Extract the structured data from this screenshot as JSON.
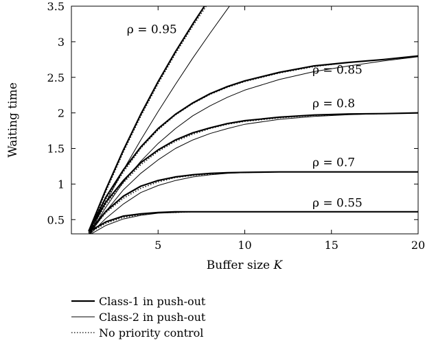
{
  "chart_data": {
    "type": "line",
    "xlabel": "Buffer size",
    "xlabel_var": "K",
    "ylabel": "Waiting time",
    "xlim": [
      0,
      20
    ],
    "ylim": [
      0.3,
      3.5
    ],
    "grid": false,
    "legend_placement": "bottom-left, below plot",
    "xticks": [
      {
        "value": 5,
        "label": "5"
      },
      {
        "value": 10,
        "label": "10"
      },
      {
        "value": 15,
        "label": "15"
      },
      {
        "value": 20,
        "label": "20"
      }
    ],
    "yticks": [
      {
        "value": 0.5,
        "label": "0.5"
      },
      {
        "value": 1,
        "label": "1"
      },
      {
        "value": 1.5,
        "label": "1.5"
      },
      {
        "value": 2,
        "label": "2"
      },
      {
        "value": 2.5,
        "label": "2.5"
      },
      {
        "value": 3,
        "label": "3"
      },
      {
        "value": 3.5,
        "label": "3.5"
      }
    ],
    "x": [
      1,
      2,
      3,
      4,
      5,
      6,
      7,
      8,
      9,
      10,
      12,
      14,
      16,
      18,
      20
    ],
    "legend": [
      {
        "label": "Class-1 in push-out",
        "style": "thick"
      },
      {
        "label": "Class-2 in push-out",
        "style": "thin"
      },
      {
        "label": "No priority control",
        "style": "dotted"
      }
    ],
    "groups": [
      {
        "label": "ρ = 0.55",
        "label_at": [
          13.9,
          0.68
        ],
        "series": [
          {
            "style": "thick",
            "values": [
              0.33,
              0.47,
              0.55,
              0.58,
              0.6,
              0.61,
              0.61,
              0.61,
              0.61,
              0.61,
              0.61,
              0.61,
              0.61,
              0.61,
              0.61
            ]
          },
          {
            "style": "thin",
            "values": [
              0.28,
              0.42,
              0.51,
              0.56,
              0.59,
              0.6,
              0.61,
              0.61,
              0.61,
              0.61,
              0.61,
              0.61,
              0.61,
              0.61,
              0.61
            ]
          },
          {
            "style": "dotted",
            "values": [
              0.31,
              0.45,
              0.53,
              0.57,
              0.6,
              0.6,
              0.61,
              0.61,
              0.61,
              0.61,
              0.61,
              0.61,
              0.61,
              0.61,
              0.61
            ]
          }
        ]
      },
      {
        "label": "ρ = 0.7",
        "label_at": [
          13.9,
          1.25
        ],
        "series": [
          {
            "style": "thick",
            "values": [
              0.33,
              0.62,
              0.83,
              0.97,
              1.05,
              1.1,
              1.13,
              1.15,
              1.16,
              1.165,
              1.17,
              1.17,
              1.17,
              1.17,
              1.17
            ]
          },
          {
            "style": "thin",
            "values": [
              0.28,
              0.52,
              0.72,
              0.88,
              0.98,
              1.05,
              1.1,
              1.13,
              1.15,
              1.16,
              1.17,
              1.17,
              1.17,
              1.17,
              1.17
            ]
          },
          {
            "style": "dotted",
            "values": [
              0.31,
              0.6,
              0.8,
              0.94,
              1.03,
              1.09,
              1.12,
              1.14,
              1.155,
              1.163,
              1.17,
              1.17,
              1.17,
              1.17,
              1.17
            ]
          }
        ]
      },
      {
        "label": "ρ = 0.8",
        "label_at": [
          13.9,
          2.08
        ],
        "series": [
          {
            "style": "thick",
            "values": [
              0.34,
              0.75,
              1.05,
              1.3,
              1.48,
              1.62,
              1.72,
              1.79,
              1.85,
              1.89,
              1.94,
              1.97,
              1.985,
              1.99,
              2.0
            ]
          },
          {
            "style": "thin",
            "values": [
              0.28,
              0.62,
              0.92,
              1.15,
              1.34,
              1.5,
              1.62,
              1.71,
              1.78,
              1.84,
              1.91,
              1.95,
              1.975,
              1.99,
              2.0
            ]
          },
          {
            "style": "dotted",
            "values": [
              0.31,
              0.72,
              1.02,
              1.27,
              1.46,
              1.6,
              1.7,
              1.78,
              1.84,
              1.88,
              1.93,
              1.965,
              1.98,
              1.99,
              2.0
            ]
          }
        ]
      },
      {
        "label": "ρ = 0.85",
        "label_at": [
          13.9,
          2.55
        ],
        "series": [
          {
            "style": "thick",
            "values": [
              0.34,
              0.82,
              1.2,
              1.52,
              1.78,
              1.98,
              2.14,
              2.27,
              2.37,
              2.45,
              2.57,
              2.66,
              2.71,
              2.75,
              2.8
            ]
          },
          {
            "style": "thin",
            "values": [
              0.28,
              0.68,
              1.03,
              1.32,
              1.57,
              1.78,
              1.96,
              2.1,
              2.22,
              2.32,
              2.47,
              2.58,
              2.66,
              2.73,
              2.79
            ]
          },
          {
            "style": "dotted",
            "values": [
              0.31,
              0.79,
              1.17,
              1.5,
              1.76,
              1.97,
              2.13,
              2.26,
              2.36,
              2.44,
              2.56,
              2.65,
              2.71,
              2.75,
              2.8
            ]
          }
        ]
      },
      {
        "label": "ρ = 0.95",
        "label_at": [
          3.2,
          3.12
        ],
        "series": [
          {
            "style": "thick",
            "values": [
              0.34,
              0.93,
              1.48,
              1.98,
              2.44,
              2.86,
              3.25,
              3.62
            ]
          },
          {
            "style": "thin",
            "values": [
              0.28,
              0.75,
              1.2,
              1.62,
              2.02,
              2.4,
              2.77,
              3.12,
              3.46,
              3.8
            ]
          },
          {
            "style": "dotted",
            "values": [
              0.31,
              0.9,
              1.45,
              1.95,
              2.41,
              2.83,
              3.22,
              3.58
            ]
          }
        ]
      }
    ]
  }
}
